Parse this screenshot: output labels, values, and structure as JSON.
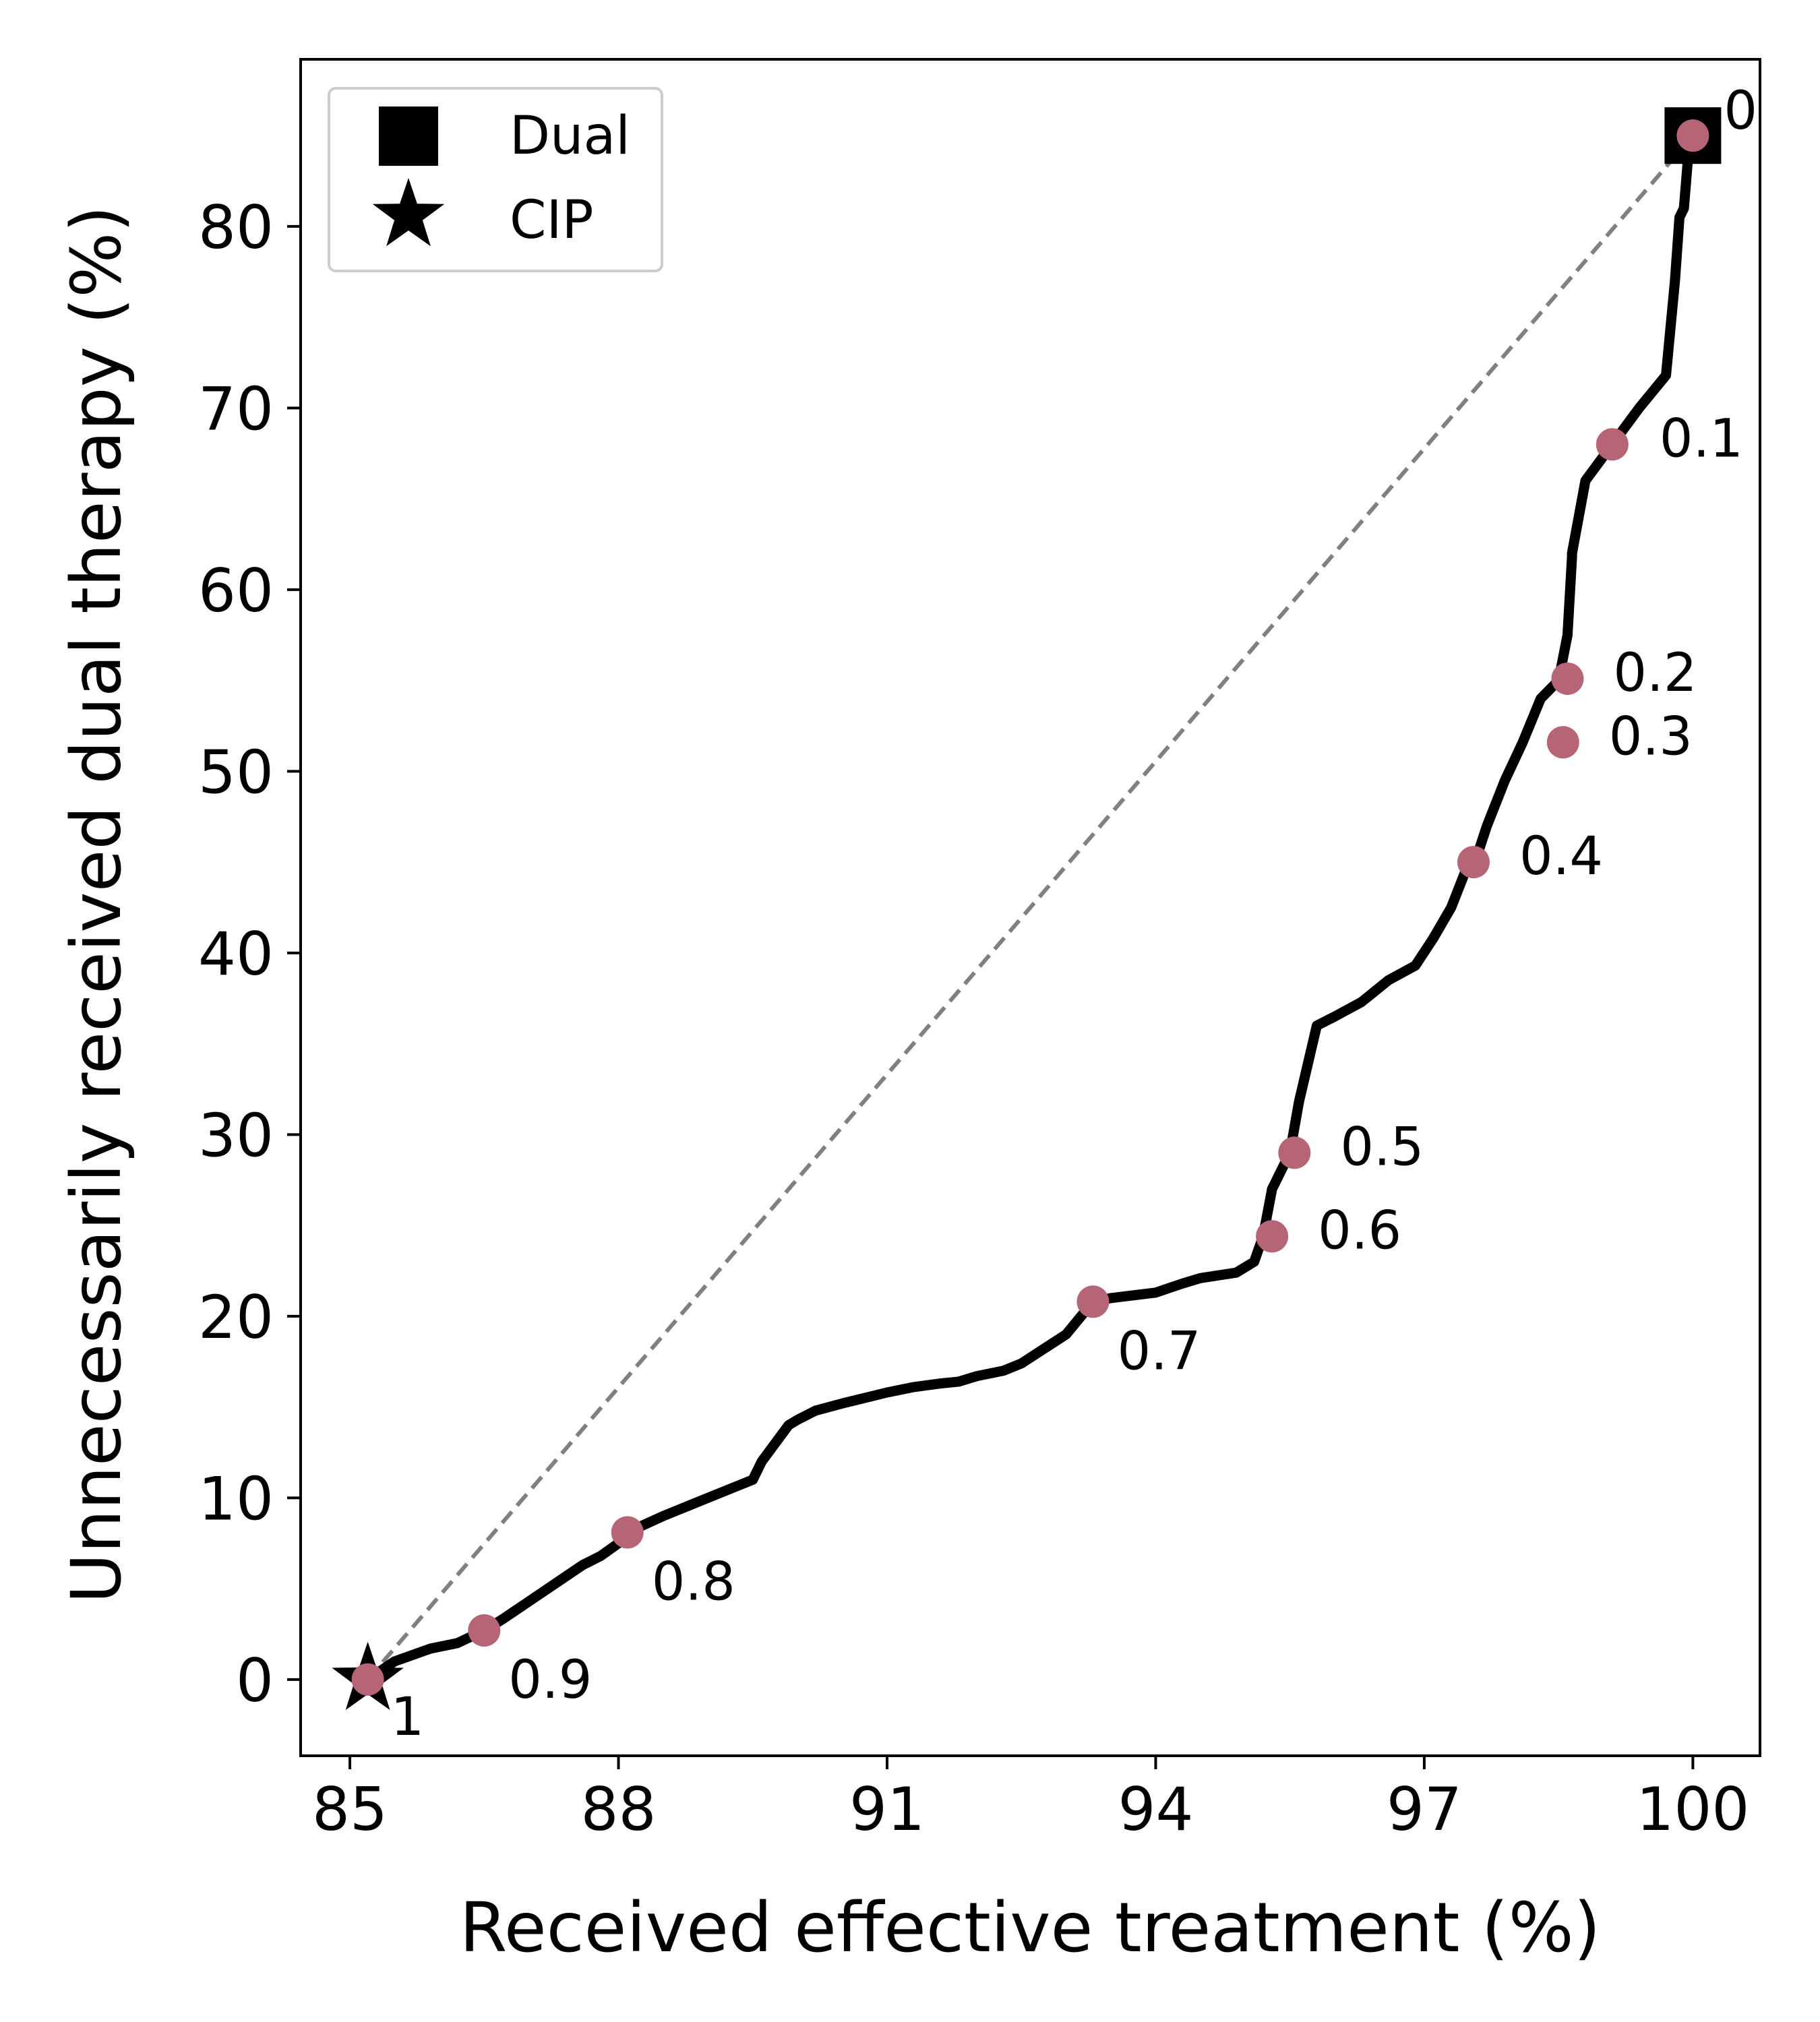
{
  "chart_data": {
    "type": "line",
    "xlabel": "Received effective treatment (%)",
    "ylabel": "Unnecessarily received dual therapy (%)",
    "xlim": [
      84.45,
      100.75
    ],
    "ylim": [
      -4.2,
      89.2
    ],
    "xticks": [
      85,
      88,
      91,
      94,
      97,
      100
    ],
    "yticks": [
      0,
      10,
      20,
      30,
      40,
      50,
      60,
      70,
      80
    ],
    "grid": false,
    "legend_position": "top-left",
    "legend": [
      {
        "label": "Dual",
        "marker": "square"
      },
      {
        "label": "CIP",
        "marker": "star"
      }
    ],
    "colors": {
      "curve": "#000000",
      "threshold_points": "#b56576",
      "diagonal": "#808080"
    },
    "series": [
      {
        "x": [
          85.2,
          85.5,
          85.9,
          86.2,
          86.5,
          86.7,
          87.0,
          87.3,
          87.6,
          87.8,
          88.0,
          88.1,
          88.5,
          89.0,
          89.5,
          89.6,
          89.9,
          90.0,
          90.2,
          90.5,
          91.0,
          91.3,
          91.6,
          91.8,
          92.0,
          92.3,
          92.5,
          93.0,
          93.3,
          93.5,
          94.0,
          94.3,
          94.5,
          94.9,
          95.1,
          95.2,
          95.3,
          95.5,
          95.6,
          95.8,
          96.0,
          96.3,
          96.6,
          96.9,
          97.1,
          97.3,
          97.5,
          97.6,
          97.7,
          97.9,
          98.1,
          98.3,
          98.5,
          98.6,
          98.65,
          98.65,
          98.8,
          99.1,
          99.4,
          99.7,
          99.8,
          99.85,
          99.9,
          99.95,
          100.0,
          100.0,
          100.0
        ],
        "y": [
          0.0,
          1.0,
          1.7,
          2.0,
          2.7,
          3.3,
          4.3,
          5.3,
          6.3,
          6.8,
          7.5,
          8.1,
          9.0,
          10.0,
          11.0,
          12.0,
          14.0,
          14.3,
          14.8,
          15.2,
          15.8,
          16.1,
          16.3,
          16.4,
          16.7,
          17.0,
          17.4,
          19.0,
          20.8,
          21.0,
          21.3,
          21.8,
          22.1,
          22.4,
          23.0,
          24.4,
          27.0,
          29.0,
          31.8,
          36.0,
          36.5,
          37.3,
          38.5,
          39.3,
          40.8,
          42.5,
          45.0,
          45.5,
          47.0,
          49.5,
          51.6,
          54.0,
          55.0,
          57.5,
          61.8,
          62.0,
          66.0,
          68.0,
          70.0,
          71.8,
          77.0,
          80.5,
          81.0,
          84.0,
          85.0,
          85.0,
          85.0
        ]
      }
    ],
    "threshold_points": [
      {
        "label": "0",
        "x": 100.0,
        "y": 85.0
      },
      {
        "label": "0.1",
        "x": 99.1,
        "y": 68.0
      },
      {
        "label": "0.2",
        "x": 98.6,
        "y": 55.1
      },
      {
        "label": "0.3",
        "x": 98.55,
        "y": 51.6
      },
      {
        "label": "0.4",
        "x": 97.55,
        "y": 45.0
      },
      {
        "label": "0.5",
        "x": 95.55,
        "y": 29.0
      },
      {
        "label": "0.6",
        "x": 95.3,
        "y": 24.4
      },
      {
        "label": "0.7",
        "x": 93.3,
        "y": 20.8
      },
      {
        "label": "0.8",
        "x": 88.1,
        "y": 8.1
      },
      {
        "label": "0.9",
        "x": 86.5,
        "y": 2.7
      },
      {
        "label": "1",
        "x": 85.2,
        "y": 0.0
      }
    ],
    "markers": [
      {
        "name": "Dual",
        "shape": "square",
        "x": 100.0,
        "y": 85.0
      },
      {
        "name": "CIP",
        "shape": "star",
        "x": 85.2,
        "y": 0.0
      }
    ],
    "diagonal": {
      "from": [
        85.2,
        0.0
      ],
      "to": [
        100.0,
        85.0
      ]
    }
  }
}
